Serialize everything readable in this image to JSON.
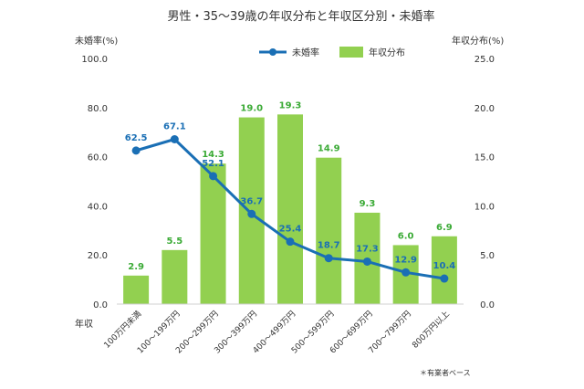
{
  "chart_data": {
    "type": "bar",
    "title": "男性・35〜39歳の年収分布と年収区分別・未婚率",
    "left_axis_label": "未婚率(%)",
    "right_axis_label": "年収分布(%)",
    "xlabel": "年収",
    "note": "＊有業者ベース",
    "categories": [
      "100万円未満",
      "100〜199万円",
      "200〜299万円",
      "300〜399万円",
      "400〜499万円",
      "500〜599万円",
      "600〜699万円",
      "700〜799万円",
      "800万円以上"
    ],
    "left_ylim": [
      0,
      100
    ],
    "left_ticks": [
      "0.0",
      "20.0",
      "40.0",
      "60.0",
      "80.0",
      "100.0"
    ],
    "right_ylim": [
      0,
      25
    ],
    "right_ticks": [
      "0.0",
      "5.0",
      "10.0",
      "15.0",
      "20.0",
      "25.0"
    ],
    "series": [
      {
        "name": "未婚率",
        "type": "line",
        "axis": "left",
        "color": "#1a6fb5",
        "values": [
          62.5,
          67.1,
          52.1,
          36.7,
          25.4,
          18.7,
          17.3,
          12.9,
          10.4
        ],
        "labels": [
          "62.5",
          "67.1",
          "52.1",
          "36.7",
          "25.4",
          "18.7",
          "17.3",
          "12.9",
          "10.4"
        ]
      },
      {
        "name": "年収分布",
        "type": "bar",
        "axis": "right",
        "color": "#92d050",
        "label_color": "#3aaa35",
        "values": [
          2.9,
          5.5,
          14.3,
          19.0,
          19.3,
          14.9,
          9.3,
          6.0,
          6.9
        ],
        "labels": [
          "2.9",
          "5.5",
          "14.3",
          "19.0",
          "19.3",
          "14.9",
          "9.3",
          "6.0",
          "6.9"
        ]
      }
    ],
    "legend_position": "top-right",
    "grid": false
  }
}
